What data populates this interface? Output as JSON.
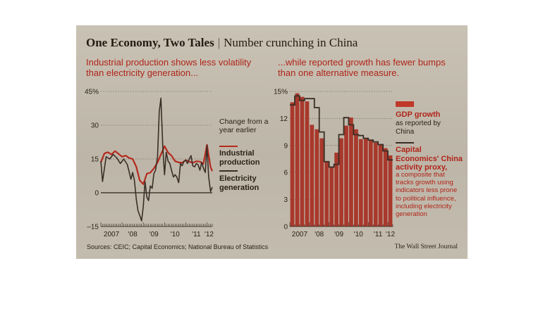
{
  "header": {
    "title": "One Economy, Two Tales",
    "separator": "|",
    "subtitle": "Number crunching in China"
  },
  "colors": {
    "red": "#b52a1e",
    "dark": "#3a2e26",
    "bar": "#a8392c",
    "grid": "#7b7064"
  },
  "chart_data": [
    {
      "type": "line",
      "title": "Industrial production shows less volatility than electricity generation...",
      "ylabel": "Change from a year earlier",
      "ylim": [
        -15,
        45
      ],
      "y_ticks": [
        45,
        30,
        15,
        0,
        -15
      ],
      "y_tick_labels": [
        "45%",
        "30",
        "15",
        "0",
        "–15"
      ],
      "x_tick_labels": [
        "2007",
        "'08",
        "'09",
        "'10",
        "'11",
        "'12"
      ],
      "x_range": [
        2007.0,
        2012.25
      ],
      "series": [
        {
          "name": "Industrial production",
          "color": "#b52a1e",
          "x": [
            2007.0,
            2007.17,
            2007.33,
            2007.5,
            2007.67,
            2007.83,
            2008.0,
            2008.17,
            2008.33,
            2008.5,
            2008.67,
            2008.83,
            2009.0,
            2009.17,
            2009.33,
            2009.5,
            2009.67,
            2009.83,
            2010.0,
            2010.17,
            2010.33,
            2010.5,
            2010.67,
            2010.83,
            2011.0,
            2011.17,
            2011.33,
            2011.5,
            2011.67,
            2011.83,
            2012.0,
            2012.17,
            2012.25
          ],
          "y": [
            13.5,
            17.5,
            18.0,
            17.0,
            18.5,
            17.3,
            16.0,
            16.5,
            15.5,
            15.0,
            11.5,
            5.5,
            3.8,
            8.5,
            8.9,
            10.8,
            13.5,
            17.0,
            20.7,
            17.8,
            16.5,
            14.0,
            13.5,
            13.3,
            14.5,
            13.8,
            13.3,
            14.0,
            13.8,
            12.8,
            21.3,
            11.4,
            9.6
          ]
        },
        {
          "name": "Electricity generation",
          "color": "#3a2e26",
          "x": [
            2007.0,
            2007.08,
            2007.25,
            2007.42,
            2007.58,
            2007.75,
            2007.92,
            2008.08,
            2008.25,
            2008.42,
            2008.5,
            2008.58,
            2008.67,
            2008.75,
            2008.83,
            2008.92,
            2009.0,
            2009.08,
            2009.17,
            2009.25,
            2009.33,
            2009.42,
            2009.5,
            2009.58,
            2009.67,
            2009.75,
            2009.83,
            2009.92,
            2010.0,
            2010.08,
            2010.17,
            2010.25,
            2010.33,
            2010.42,
            2010.5,
            2010.58,
            2010.67,
            2010.75,
            2010.83,
            2010.92,
            2011.0,
            2011.08,
            2011.17,
            2011.25,
            2011.33,
            2011.42,
            2011.5,
            2011.58,
            2011.67,
            2011.75,
            2011.83,
            2011.92,
            2012.0,
            2012.08,
            2012.17,
            2012.25
          ],
          "y": [
            14.0,
            5.0,
            16.0,
            15.0,
            17.0,
            15.5,
            13.0,
            15.0,
            12.5,
            6.0,
            9.0,
            5.5,
            -3.0,
            -8.0,
            -10.0,
            -12.5,
            -6.0,
            5.0,
            -2.0,
            -3.5,
            3.0,
            2.0,
            8.5,
            10.0,
            16.0,
            36.0,
            42.0,
            20.0,
            8.0,
            18.0,
            14.0,
            13.0,
            10.0,
            7.0,
            8.0,
            7.0,
            4.5,
            13.0,
            12.0,
            14.0,
            14.5,
            13.0,
            15.0,
            16.5,
            12.0,
            11.5,
            13.0,
            12.5,
            10.0,
            13.5,
            11.0,
            9.0,
            21.0,
            7.0,
            0.5,
            2.5
          ]
        }
      ]
    },
    {
      "type": "bar",
      "title": "...while reported growth has fewer bumps than one alternative measure.",
      "ylim": [
        0,
        15
      ],
      "y_ticks": [
        15,
        12,
        9,
        6,
        3,
        0
      ],
      "y_tick_labels": [
        "15%",
        "12",
        "9",
        "6",
        "3",
        "0"
      ],
      "x_tick_labels": [
        "2007",
        "'08",
        "'09",
        "'10",
        "'11",
        "'12"
      ],
      "categories": [
        "2007 Q1",
        "2007 Q2",
        "2007 Q3",
        "2007 Q4",
        "2008 Q1",
        "2008 Q2",
        "2008 Q3",
        "2008 Q4",
        "2009 Q1",
        "2009 Q2",
        "2009 Q3",
        "2009 Q4",
        "2010 Q1",
        "2010 Q2",
        "2010 Q3",
        "2010 Q4",
        "2011 Q1",
        "2011 Q2",
        "2011 Q3",
        "2011 Q4",
        "2012 Q1"
      ],
      "series": [
        {
          "name": "GDP growth",
          "type": "bar",
          "color": "#a8392c",
          "values": [
            13.8,
            14.8,
            14.4,
            13.9,
            11.3,
            10.8,
            9.8,
            7.2,
            6.6,
            8.2,
            9.8,
            11.2,
            12.1,
            10.8,
            9.7,
            9.8,
            9.6,
            9.3,
            9.1,
            8.7,
            7.9
          ]
        },
        {
          "name": "Capital Economics' China activity proxy",
          "type": "step",
          "color": "#3a2e26",
          "values": [
            13.5,
            14.5,
            14.0,
            14.2,
            14.2,
            13.2,
            10.5,
            7.2,
            6.6,
            6.9,
            10.2,
            12.1,
            11.3,
            10.2,
            10.1,
            9.8,
            9.6,
            9.4,
            9.1,
            8.4,
            7.4
          ]
        }
      ]
    }
  ],
  "left_panel": {
    "subhead": "Industrial production shows less volatility than electricity generation...",
    "note": "Change from a year earlier",
    "legend_ip": "Industrial production",
    "legend_elec": "Electricity generation"
  },
  "right_panel": {
    "subhead": "...while reported growth has fewer bumps than one alternative measure.",
    "legend_gdp_title": "GDP growth",
    "legend_gdp_note": "as reported by China",
    "legend_proxy_title": "Capital Economics' China activity proxy,",
    "legend_proxy_note": "a composite that tracks growth using indicators less prone to political influence, including electricity generation"
  },
  "footer": {
    "sources": "Sources: CEIC; Capital Economics; National Bureau of Statistics",
    "brand": "The Wall Street Journal"
  }
}
